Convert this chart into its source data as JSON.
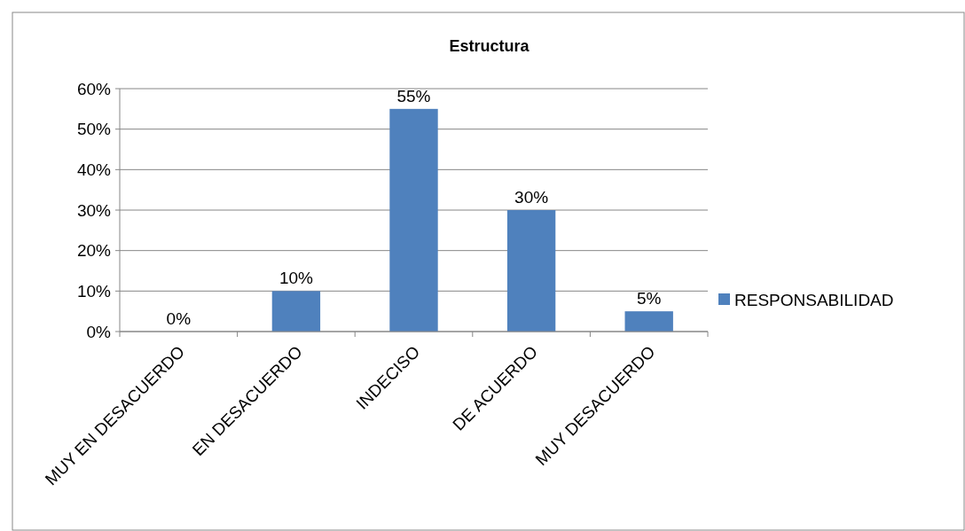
{
  "chart_data": {
    "type": "bar",
    "title": "Estructura",
    "categories": [
      "MUY EN DESACUERDO",
      "EN DESACUERDO",
      "INDECISO",
      "DE ACUERDO",
      "MUY DESACUERDO"
    ],
    "series": [
      {
        "name": "RESPONSABILIDAD",
        "color": "#4f81bd",
        "values": [
          0,
          10,
          55,
          30,
          5
        ],
        "value_labels": [
          "0%",
          "10%",
          "55%",
          "30%",
          "5%"
        ]
      }
    ],
    "ylim": [
      0,
      60
    ],
    "yticks": [
      {
        "value": 0,
        "label": "0%"
      },
      {
        "value": 10,
        "label": "10%"
      },
      {
        "value": 20,
        "label": "20%"
      },
      {
        "value": 30,
        "label": "30%"
      },
      {
        "value": 40,
        "label": "40%"
      },
      {
        "value": 50,
        "label": "50%"
      },
      {
        "value": 60,
        "label": "60%"
      }
    ],
    "grid": "y",
    "legend": "right"
  }
}
